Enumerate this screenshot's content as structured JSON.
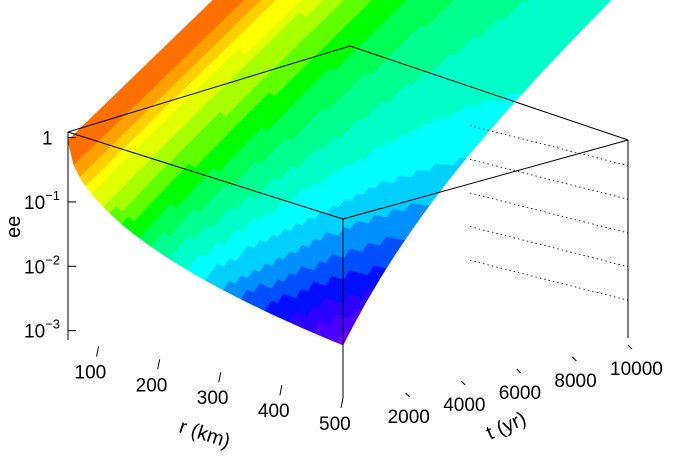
{
  "chart_data": {
    "type": "surface",
    "title": "",
    "xlabel": "r (km)",
    "ylabel": "t (yr)",
    "zlabel": "ee",
    "xlim": [
      50,
      500
    ],
    "ylim": [
      0,
      10000
    ],
    "zlim": [
      0.0005,
      2.5
    ],
    "zscale": "log",
    "x_ticks": [
      "100",
      "200",
      "300",
      "400",
      "500"
    ],
    "x_tick_values": [
      100,
      200,
      300,
      400,
      500
    ],
    "y_ticks": [
      "2000",
      "4000",
      "6000",
      "8000",
      "10000"
    ],
    "y_tick_values": [
      2000,
      4000,
      6000,
      8000,
      10000
    ],
    "z_ticks": [
      {
        "base": "1",
        "exp": ""
      },
      {
        "base": "10",
        "exp": "−1"
      },
      {
        "base": "10",
        "exp": "−2"
      },
      {
        "base": "10",
        "exp": "−3"
      }
    ],
    "z_tick_values": [
      1,
      0.1,
      0.01,
      0.001
    ],
    "grid": "back-walls-dotted",
    "palette": [
      "#6a00ff",
      "#4b00ff",
      "#2a00ff",
      "#0010ff",
      "#0050ff",
      "#0090ff",
      "#00d0ff",
      "#00ffff",
      "#00ffc8",
      "#00ff90",
      "#00ff55",
      "#00ff00",
      "#60ff00",
      "#a8ff00",
      "#e0ff00",
      "#ffff00",
      "#ffd000",
      "#ffa000",
      "#ff7000",
      "#ff4000",
      "#ff0000"
    ],
    "surface_description_points": [
      {
        "r": 50,
        "t": 0,
        "ee": 0.9
      },
      {
        "r": 50,
        "t": 10000,
        "ee": 0.9
      },
      {
        "r": 500,
        "t": 0,
        "ee": 0.0006
      },
      {
        "r": 500,
        "t": 10000,
        "ee": 0.015
      },
      {
        "r": 300,
        "t": 0,
        "ee": 0.003
      },
      {
        "r": 150,
        "t": 0,
        "ee": 0.03
      }
    ]
  }
}
